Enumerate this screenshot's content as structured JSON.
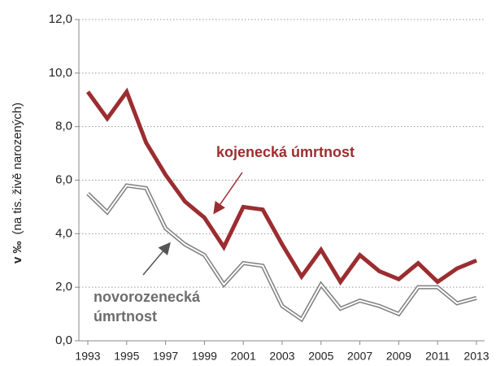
{
  "chart_data": {
    "type": "line",
    "ylabel": "v ‰",
    "ylabel_note": "(na tis. živě narozených)",
    "x": [
      1993,
      1994,
      1995,
      1996,
      1997,
      1998,
      1999,
      2000,
      2001,
      2002,
      2003,
      2004,
      2005,
      2006,
      2007,
      2008,
      2009,
      2010,
      2011,
      2012,
      2013
    ],
    "series": [
      {
        "name": "kojenecká úmrtnost",
        "color": "#9b2d30",
        "style": "solid",
        "values": [
          9.3,
          8.3,
          9.3,
          7.4,
          6.2,
          5.2,
          4.6,
          3.5,
          5.0,
          4.9,
          3.6,
          2.4,
          3.4,
          2.2,
          3.2,
          2.6,
          2.3,
          2.9,
          2.2,
          2.7,
          3.0
        ]
      },
      {
        "name": [
          "novorozenecká",
          "úmrtnost"
        ],
        "color": "#7f7f7f",
        "style": "double",
        "values": [
          5.5,
          4.8,
          5.8,
          5.7,
          4.2,
          3.6,
          3.2,
          2.1,
          2.9,
          2.8,
          1.3,
          0.8,
          2.1,
          1.2,
          1.5,
          1.3,
          1.0,
          2.0,
          2.0,
          1.4,
          1.6
        ]
      }
    ],
    "xlim": [
      1993,
      2013
    ],
    "xticks": [
      1993,
      1995,
      1997,
      1999,
      2001,
      2003,
      2005,
      2007,
      2009,
      2011,
      2013
    ],
    "ylim": [
      0,
      12
    ],
    "yticks": [
      {
        "value": 0,
        "label": "0,0"
      },
      {
        "value": 2,
        "label": "2,0"
      },
      {
        "value": 4,
        "label": "4,0"
      },
      {
        "value": 6,
        "label": "6,0"
      },
      {
        "value": 8,
        "label": "8,0"
      },
      {
        "value": 10,
        "label": "10,0"
      },
      {
        "value": 12,
        "label": "12,0"
      }
    ],
    "grid": true,
    "legend": "inline"
  }
}
